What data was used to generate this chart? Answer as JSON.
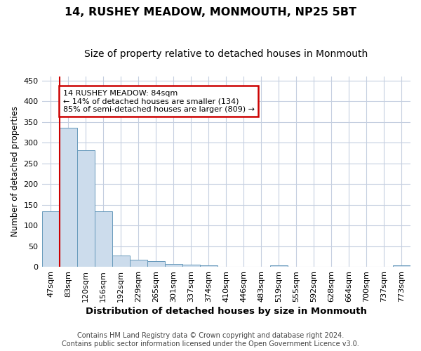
{
  "title": "14, RUSHEY MEADOW, MONMOUTH, NP25 5BT",
  "subtitle": "Size of property relative to detached houses in Monmouth",
  "xlabel": "Distribution of detached houses by size in Monmouth",
  "ylabel": "Number of detached properties",
  "categories": [
    "47sqm",
    "83sqm",
    "120sqm",
    "156sqm",
    "192sqm",
    "229sqm",
    "265sqm",
    "301sqm",
    "337sqm",
    "374sqm",
    "410sqm",
    "446sqm",
    "483sqm",
    "519sqm",
    "555sqm",
    "592sqm",
    "628sqm",
    "664sqm",
    "700sqm",
    "737sqm",
    "773sqm"
  ],
  "values": [
    134,
    336,
    281,
    134,
    27,
    17,
    13,
    7,
    5,
    4,
    0,
    0,
    0,
    4,
    0,
    0,
    0,
    0,
    0,
    0,
    4
  ],
  "bar_color": "#ccdcec",
  "bar_edge_color": "#6699bb",
  "property_line_color": "#cc0000",
  "property_line_x": 0.5,
  "annotation_text": "14 RUSHEY MEADOW: 84sqm\n← 14% of detached houses are smaller (134)\n85% of semi-detached houses are larger (809) →",
  "annotation_box_facecolor": "#ffffff",
  "annotation_box_edgecolor": "#cc0000",
  "ylim": [
    0,
    460
  ],
  "yticks": [
    0,
    50,
    100,
    150,
    200,
    250,
    300,
    350,
    400,
    450
  ],
  "background_color": "#ffffff",
  "grid_color": "#c5cfe0",
  "footer_line1": "Contains HM Land Registry data © Crown copyright and database right 2024.",
  "footer_line2": "Contains public sector information licensed under the Open Government Licence v3.0.",
  "title_fontsize": 11.5,
  "subtitle_fontsize": 10,
  "xlabel_fontsize": 9.5,
  "ylabel_fontsize": 8.5,
  "tick_fontsize": 8,
  "footer_fontsize": 7,
  "annot_fontsize": 8
}
